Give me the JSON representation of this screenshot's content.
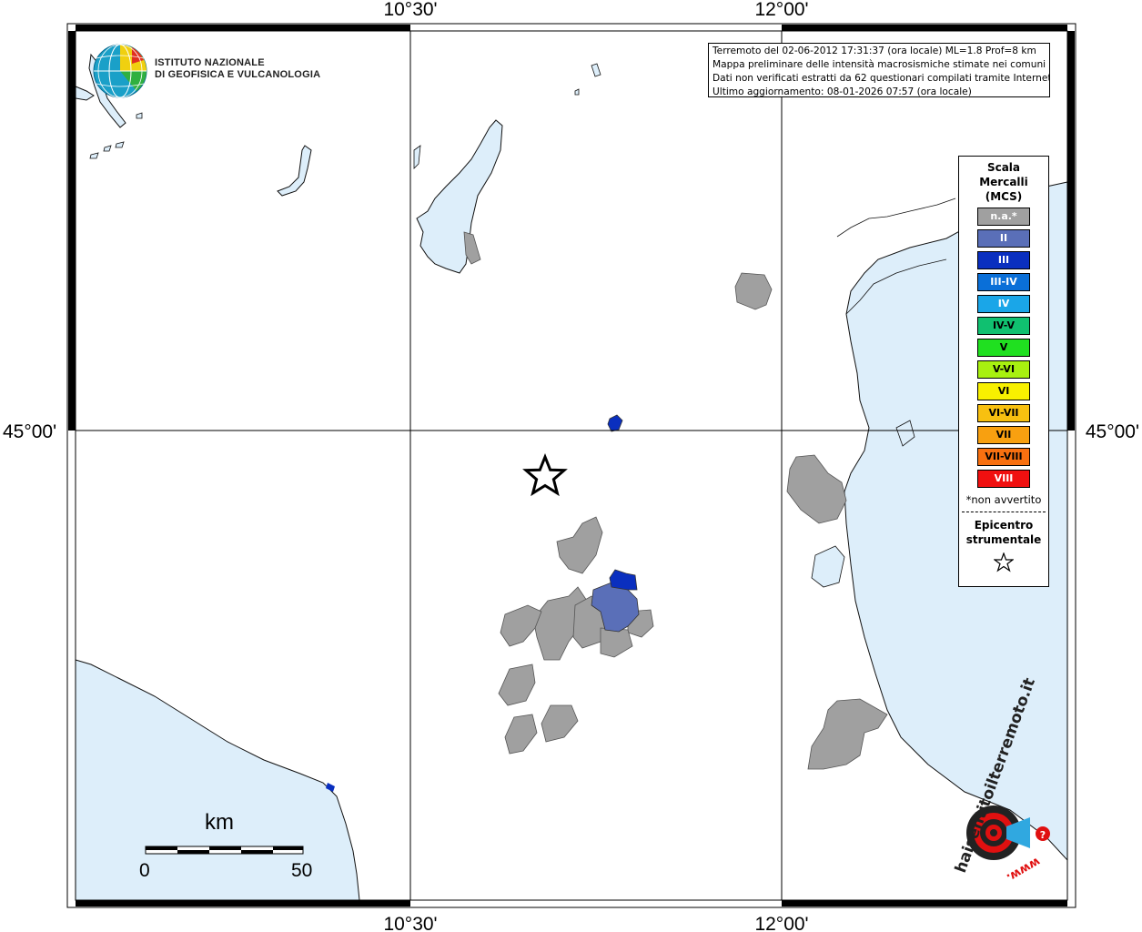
{
  "map_frame": {
    "lon_labels": [
      "10°30'",
      "12°00'"
    ],
    "lat_label": "45°00'"
  },
  "logo_ingv": {
    "line1": "ISTITUTO NAZIONALE",
    "line2": "DI GEOFISICA E VULCANOLOGIA"
  },
  "info": {
    "line1": "Terremoto del 02-06-2012 17:31:37 (ora locale) ML=1.8 Prof=8 km",
    "line2": "Mappa preliminare delle intensità macrosismiche stimate nei comuni",
    "line3": "Dati non verificati estratti da 62 questionari compilati tramite Internet.",
    "line4": "Ultimo aggiornamento: 08-01-2026 07:57 (ora locale)"
  },
  "legend": {
    "title_line1": "Scala",
    "title_line2": "Mercalli",
    "title_line3": "(MCS)",
    "items": [
      {
        "label": "n.a.*",
        "color": "#a0a0a0",
        "text_color": "#ffffff"
      },
      {
        "label": "II",
        "color": "#5a6fb8",
        "text_color": "#ffffff"
      },
      {
        "label": "III",
        "color": "#0a2fbf",
        "text_color": "#ffffff"
      },
      {
        "label": "III-IV",
        "color": "#0a6fd8",
        "text_color": "#ffffff"
      },
      {
        "label": "IV",
        "color": "#1aa6e8",
        "text_color": "#ffffff"
      },
      {
        "label": "IV-V",
        "color": "#10c070",
        "text_color": "#000000"
      },
      {
        "label": "V",
        "color": "#20e020",
        "text_color": "#000000"
      },
      {
        "label": "V-VI",
        "color": "#a8f010",
        "text_color": "#000000"
      },
      {
        "label": "VI",
        "color": "#f8f000",
        "text_color": "#000000"
      },
      {
        "label": "VI-VII",
        "color": "#f8c010",
        "text_color": "#000000"
      },
      {
        "label": "VII",
        "color": "#f8a010",
        "text_color": "#000000"
      },
      {
        "label": "VII-VIII",
        "color": "#f87010",
        "text_color": "#000000"
      },
      {
        "label": "VIII",
        "color": "#f01010",
        "text_color": "#ffffff"
      }
    ],
    "note": "*non avvertito",
    "epicentre_line1": "Epicentro",
    "epicentre_line2": "strumentale"
  },
  "scale_bar": {
    "unit": "km",
    "min": "0",
    "max": "50"
  },
  "logo_hsit": {
    "text": "haisentitoilterremoto.it",
    "url": "www."
  },
  "colors": {
    "sea": "#ddeefa",
    "lake": "#ddeefa",
    "grey_comune": "#a0a0a0",
    "intensity_II": "#5a6fb8",
    "intensity_III": "#0a2fbf"
  }
}
